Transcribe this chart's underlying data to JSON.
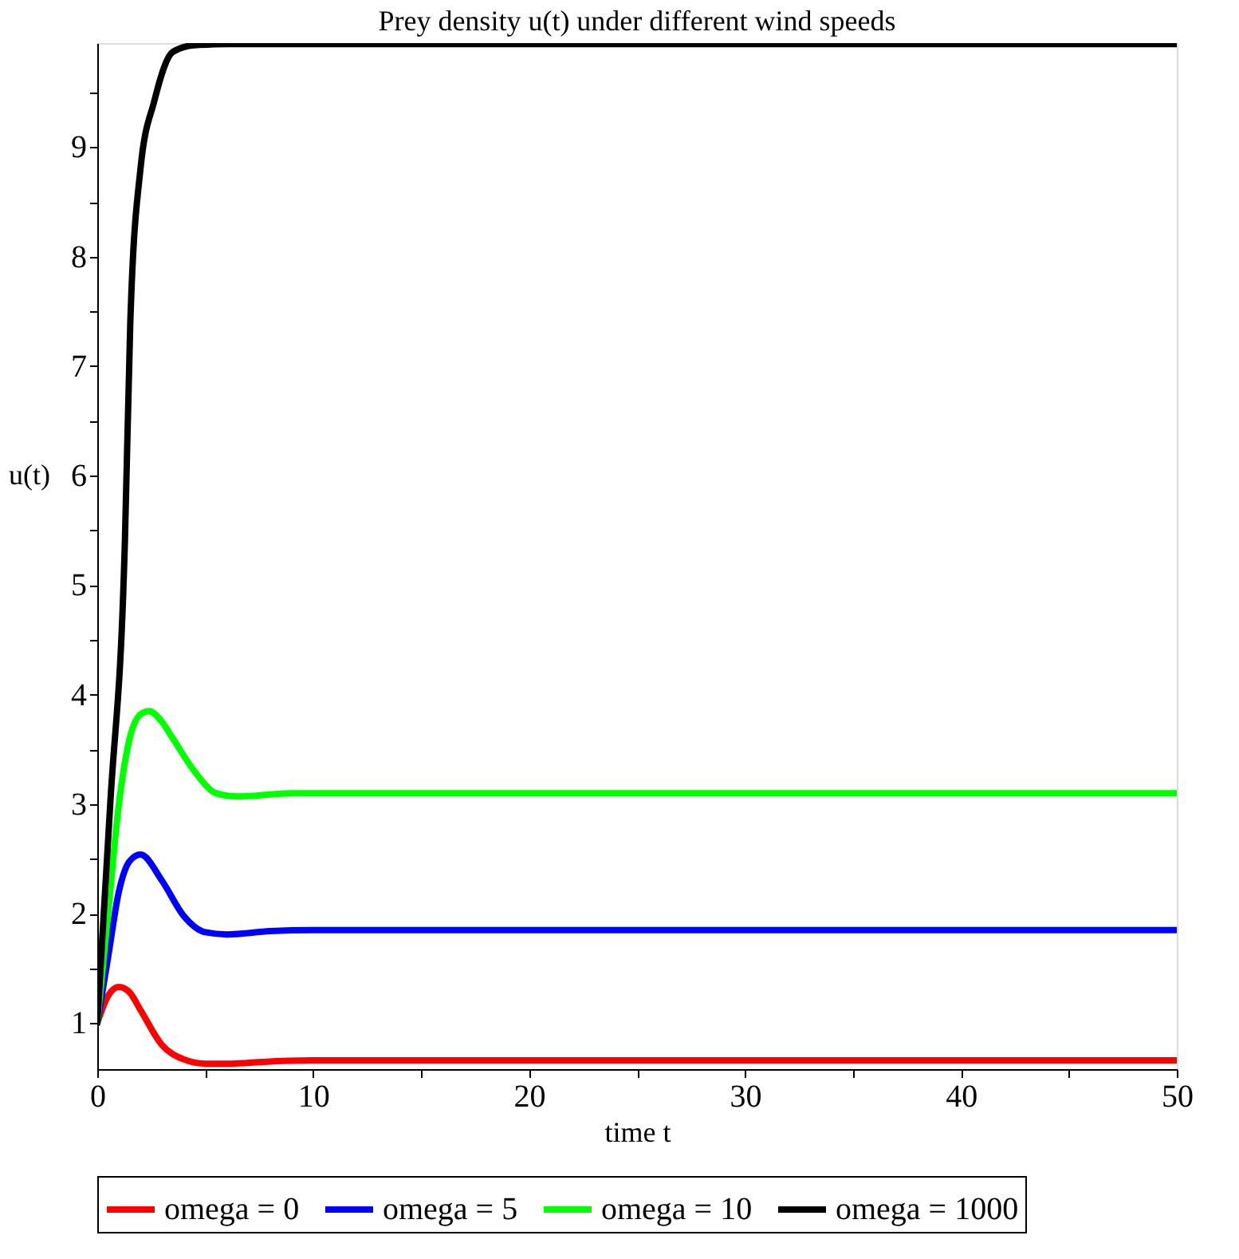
{
  "chart_data": {
    "type": "line",
    "title": "Prey density u(t)  under different wind speeds",
    "xlabel": "time t",
    "ylabel": "u(t)",
    "xlim": [
      0,
      50
    ],
    "ylim": [
      0.58,
      9.95
    ],
    "xticks": [
      0,
      {
        "value": 5,
        "label": null
      },
      10,
      {
        "value": 15,
        "label": null
      },
      20,
      {
        "value": 25,
        "label": null
      },
      30,
      {
        "value": 35,
        "label": null
      },
      40,
      {
        "value": 45,
        "label": null
      },
      50
    ],
    "yticks": [
      1,
      {
        "value": 1.5,
        "label": null
      },
      2,
      {
        "value": 2.5,
        "label": null
      },
      3,
      {
        "value": 3.5,
        "label": null
      },
      4,
      {
        "value": 4.5,
        "label": null
      },
      5,
      {
        "value": 5.5,
        "label": null
      },
      6,
      {
        "value": 6.5,
        "label": null
      },
      7,
      {
        "value": 7.5,
        "label": null
      },
      8,
      {
        "value": 8.5,
        "label": null
      },
      9,
      {
        "value": 9.5,
        "label": null
      }
    ],
    "grid": false,
    "legend": "bottom",
    "marker": "none",
    "line_style": "solid",
    "series": [
      {
        "name": "omega = 0",
        "color": "#ff0000",
        "x": [
          0,
          0.5,
          1,
          1.5,
          2,
          3,
          4,
          5,
          6,
          8,
          10,
          20,
          50
        ],
        "values": [
          1,
          1.25,
          1.33,
          1.28,
          1.12,
          0.8,
          0.67,
          0.63,
          0.63,
          0.65,
          0.66,
          0.66,
          0.66
        ]
      },
      {
        "name": "omega = 5",
        "color": "#0000ff",
        "x": [
          0,
          0.5,
          1,
          1.5,
          2,
          3,
          4,
          5,
          6,
          8,
          10,
          20,
          50
        ],
        "values": [
          1,
          1.6,
          2.2,
          2.48,
          2.54,
          2.3,
          1.98,
          1.83,
          1.81,
          1.84,
          1.85,
          1.85,
          1.85
        ]
      },
      {
        "name": "omega = 10",
        "color": "#00ff00",
        "x": [
          0,
          0.5,
          1,
          1.5,
          2,
          2.4,
          3,
          3.5,
          4.5,
          5.5,
          6.5,
          9,
          20,
          50
        ],
        "values": [
          1,
          2.0,
          3.0,
          3.6,
          3.82,
          3.85,
          3.75,
          3.6,
          3.3,
          3.1,
          3.07,
          3.1,
          3.1,
          3.1
        ]
      },
      {
        "name": "omega = 1000",
        "color": "#000000",
        "x": [
          0,
          0.6,
          1.28,
          1.53,
          2.0,
          2.64,
          3.5,
          4.5,
          6,
          20,
          50
        ],
        "values": [
          1,
          3.0,
          5.4,
          7.4,
          8.8,
          9.42,
          9.87,
          9.93,
          9.94,
          9.94,
          9.94
        ]
      }
    ]
  }
}
